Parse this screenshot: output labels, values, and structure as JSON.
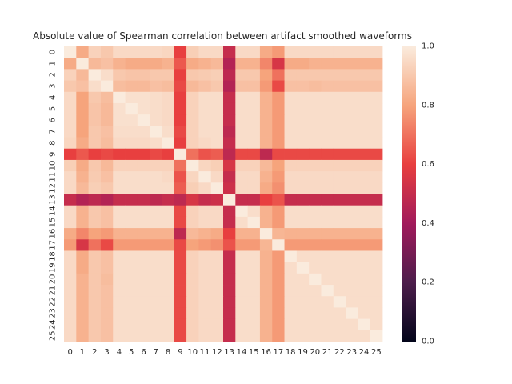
{
  "chart_data": {
    "type": "heatmap",
    "title": "Absolute value of Spearman correlation between artifact smoothed waveforms",
    "xlabel": "",
    "ylabel": "",
    "x_tick_labels": [
      "0",
      "1",
      "2",
      "3",
      "4",
      "5",
      "6",
      "7",
      "8",
      "9",
      "10",
      "11",
      "12",
      "13",
      "14",
      "15",
      "16",
      "17",
      "18",
      "19",
      "20",
      "21",
      "22",
      "23",
      "24",
      "25"
    ],
    "y_tick_labels": [
      "0",
      "1",
      "2",
      "3",
      "4",
      "5",
      "6",
      "7",
      "8",
      "9",
      "10",
      "11",
      "12",
      "13",
      "14",
      "15",
      "16",
      "17",
      "18",
      "19",
      "20",
      "21",
      "22",
      "23",
      "24",
      "25"
    ],
    "colorbar": {
      "range": [
        0.0,
        1.0
      ],
      "tick_labels": [
        "0.0",
        "0.2",
        "0.4",
        "0.6",
        "0.8",
        "1.0"
      ],
      "tick_values": [
        0.0,
        0.2,
        0.4,
        0.6,
        0.8,
        1.0
      ]
    },
    "colormap_stops": [
      [
        0.0,
        "#03051a"
      ],
      [
        0.2,
        "#4c1d4b"
      ],
      [
        0.4,
        "#a11a5b"
      ],
      [
        0.6,
        "#e83f3f"
      ],
      [
        0.8,
        "#f6a47c"
      ],
      [
        1.0,
        "#faebdd"
      ]
    ],
    "values": [
      [
        1.0,
        0.82,
        0.93,
        0.9,
        0.95,
        0.95,
        0.95,
        0.95,
        0.94,
        0.6,
        0.92,
        0.95,
        0.95,
        0.5,
        0.95,
        0.95,
        0.82,
        0.78,
        0.95,
        0.95,
        0.95,
        0.95,
        0.95,
        0.95,
        0.95,
        0.95
      ],
      [
        0.82,
        1.0,
        0.86,
        0.88,
        0.84,
        0.82,
        0.82,
        0.82,
        0.84,
        0.65,
        0.82,
        0.84,
        0.86,
        0.45,
        0.84,
        0.84,
        0.74,
        0.55,
        0.82,
        0.82,
        0.84,
        0.84,
        0.84,
        0.84,
        0.84,
        0.84
      ],
      [
        0.93,
        0.86,
        1.0,
        0.96,
        0.9,
        0.89,
        0.89,
        0.9,
        0.9,
        0.6,
        0.9,
        0.91,
        0.92,
        0.48,
        0.9,
        0.9,
        0.8,
        0.7,
        0.9,
        0.9,
        0.9,
        0.9,
        0.9,
        0.9,
        0.9,
        0.9
      ],
      [
        0.9,
        0.88,
        0.96,
        1.0,
        0.87,
        0.86,
        0.86,
        0.88,
        0.87,
        0.62,
        0.86,
        0.88,
        0.9,
        0.45,
        0.88,
        0.88,
        0.78,
        0.62,
        0.88,
        0.88,
        0.87,
        0.88,
        0.88,
        0.88,
        0.88,
        0.88
      ],
      [
        0.95,
        0.8,
        0.9,
        0.87,
        1.0,
        0.97,
        0.97,
        0.96,
        0.95,
        0.6,
        0.93,
        0.96,
        0.96,
        0.5,
        0.96,
        0.96,
        0.84,
        0.78,
        0.96,
        0.96,
        0.96,
        0.96,
        0.96,
        0.96,
        0.96,
        0.96
      ],
      [
        0.95,
        0.8,
        0.89,
        0.86,
        0.97,
        1.0,
        0.97,
        0.96,
        0.95,
        0.6,
        0.93,
        0.96,
        0.96,
        0.5,
        0.96,
        0.96,
        0.84,
        0.78,
        0.96,
        0.96,
        0.96,
        0.96,
        0.96,
        0.96,
        0.96,
        0.96
      ],
      [
        0.95,
        0.8,
        0.89,
        0.86,
        0.97,
        0.97,
        1.0,
        0.96,
        0.95,
        0.6,
        0.93,
        0.96,
        0.96,
        0.5,
        0.96,
        0.96,
        0.84,
        0.78,
        0.96,
        0.96,
        0.96,
        0.96,
        0.96,
        0.96,
        0.96,
        0.96
      ],
      [
        0.95,
        0.8,
        0.9,
        0.88,
        0.96,
        0.96,
        0.96,
        1.0,
        0.96,
        0.62,
        0.93,
        0.96,
        0.96,
        0.48,
        0.96,
        0.96,
        0.84,
        0.78,
        0.96,
        0.96,
        0.96,
        0.96,
        0.96,
        0.96,
        0.96,
        0.96
      ],
      [
        0.94,
        0.82,
        0.9,
        0.87,
        0.95,
        0.95,
        0.95,
        0.96,
        1.0,
        0.6,
        0.93,
        0.95,
        0.96,
        0.5,
        0.96,
        0.96,
        0.84,
        0.78,
        0.96,
        0.96,
        0.96,
        0.96,
        0.96,
        0.96,
        0.96,
        0.96
      ],
      [
        0.6,
        0.65,
        0.6,
        0.62,
        0.6,
        0.6,
        0.6,
        0.62,
        0.6,
        1.0,
        0.7,
        0.64,
        0.66,
        0.48,
        0.62,
        0.62,
        0.48,
        0.62,
        0.62,
        0.62,
        0.62,
        0.62,
        0.62,
        0.62,
        0.62,
        0.62
      ],
      [
        0.92,
        0.82,
        0.9,
        0.86,
        0.93,
        0.93,
        0.93,
        0.93,
        0.93,
        0.7,
        1.0,
        0.94,
        0.92,
        0.55,
        0.93,
        0.93,
        0.86,
        0.8,
        0.93,
        0.93,
        0.93,
        0.93,
        0.93,
        0.93,
        0.93,
        0.93
      ],
      [
        0.95,
        0.84,
        0.91,
        0.88,
        0.96,
        0.96,
        0.96,
        0.96,
        0.95,
        0.64,
        0.94,
        1.0,
        0.95,
        0.5,
        0.95,
        0.95,
        0.84,
        0.78,
        0.95,
        0.95,
        0.95,
        0.95,
        0.95,
        0.95,
        0.95,
        0.95
      ],
      [
        0.95,
        0.86,
        0.92,
        0.9,
        0.96,
        0.96,
        0.96,
        0.96,
        0.96,
        0.66,
        0.92,
        0.95,
        1.0,
        0.52,
        0.95,
        0.95,
        0.82,
        0.76,
        0.95,
        0.95,
        0.95,
        0.95,
        0.95,
        0.95,
        0.95,
        0.95
      ],
      [
        0.5,
        0.45,
        0.48,
        0.45,
        0.5,
        0.5,
        0.5,
        0.48,
        0.5,
        0.48,
        0.55,
        0.5,
        0.52,
        1.0,
        0.5,
        0.5,
        0.6,
        0.64,
        0.5,
        0.5,
        0.5,
        0.5,
        0.5,
        0.5,
        0.5,
        0.5
      ],
      [
        0.95,
        0.84,
        0.9,
        0.88,
        0.96,
        0.96,
        0.96,
        0.96,
        0.96,
        0.62,
        0.93,
        0.95,
        0.95,
        0.5,
        1.0,
        0.96,
        0.84,
        0.78,
        0.96,
        0.96,
        0.96,
        0.96,
        0.96,
        0.96,
        0.96,
        0.96
      ],
      [
        0.95,
        0.84,
        0.9,
        0.88,
        0.96,
        0.96,
        0.96,
        0.96,
        0.96,
        0.62,
        0.93,
        0.95,
        0.95,
        0.5,
        0.96,
        1.0,
        0.84,
        0.78,
        0.96,
        0.96,
        0.96,
        0.96,
        0.96,
        0.96,
        0.96,
        0.96
      ],
      [
        0.82,
        0.74,
        0.8,
        0.78,
        0.84,
        0.84,
        0.84,
        0.84,
        0.84,
        0.48,
        0.86,
        0.84,
        0.82,
        0.6,
        0.84,
        0.84,
        1.0,
        0.85,
        0.84,
        0.84,
        0.84,
        0.84,
        0.84,
        0.84,
        0.84,
        0.84
      ],
      [
        0.78,
        0.55,
        0.7,
        0.62,
        0.78,
        0.78,
        0.78,
        0.78,
        0.78,
        0.62,
        0.8,
        0.78,
        0.76,
        0.64,
        0.78,
        0.78,
        0.85,
        1.0,
        0.78,
        0.78,
        0.78,
        0.78,
        0.78,
        0.78,
        0.78,
        0.78
      ],
      [
        0.95,
        0.82,
        0.9,
        0.88,
        0.96,
        0.96,
        0.96,
        0.96,
        0.96,
        0.62,
        0.93,
        0.95,
        0.95,
        0.5,
        0.96,
        0.96,
        0.84,
        0.78,
        1.0,
        0.96,
        0.96,
        0.96,
        0.96,
        0.96,
        0.96,
        0.96
      ],
      [
        0.95,
        0.82,
        0.9,
        0.88,
        0.96,
        0.96,
        0.96,
        0.96,
        0.96,
        0.62,
        0.93,
        0.95,
        0.95,
        0.5,
        0.96,
        0.96,
        0.84,
        0.78,
        0.96,
        1.0,
        0.96,
        0.96,
        0.96,
        0.96,
        0.96,
        0.96
      ],
      [
        0.95,
        0.84,
        0.9,
        0.87,
        0.96,
        0.96,
        0.96,
        0.96,
        0.96,
        0.62,
        0.93,
        0.95,
        0.95,
        0.5,
        0.96,
        0.96,
        0.84,
        0.78,
        0.96,
        0.96,
        1.0,
        0.96,
        0.96,
        0.96,
        0.96,
        0.96
      ],
      [
        0.95,
        0.84,
        0.9,
        0.88,
        0.96,
        0.96,
        0.96,
        0.96,
        0.96,
        0.62,
        0.93,
        0.95,
        0.95,
        0.5,
        0.96,
        0.96,
        0.84,
        0.78,
        0.96,
        0.96,
        0.96,
        1.0,
        0.96,
        0.96,
        0.96,
        0.96
      ],
      [
        0.95,
        0.84,
        0.9,
        0.88,
        0.96,
        0.96,
        0.96,
        0.96,
        0.96,
        0.62,
        0.93,
        0.95,
        0.95,
        0.5,
        0.96,
        0.96,
        0.84,
        0.78,
        0.96,
        0.96,
        0.96,
        0.96,
        1.0,
        0.96,
        0.96,
        0.96
      ],
      [
        0.95,
        0.84,
        0.9,
        0.88,
        0.96,
        0.96,
        0.96,
        0.96,
        0.96,
        0.62,
        0.93,
        0.95,
        0.95,
        0.5,
        0.96,
        0.96,
        0.84,
        0.78,
        0.96,
        0.96,
        0.96,
        0.96,
        0.96,
        1.0,
        0.96,
        0.96
      ],
      [
        0.95,
        0.84,
        0.9,
        0.88,
        0.96,
        0.96,
        0.96,
        0.96,
        0.96,
        0.62,
        0.93,
        0.95,
        0.95,
        0.5,
        0.96,
        0.96,
        0.84,
        0.78,
        0.96,
        0.96,
        0.96,
        0.96,
        0.96,
        0.96,
        1.0,
        0.96
      ],
      [
        0.95,
        0.84,
        0.9,
        0.88,
        0.96,
        0.96,
        0.96,
        0.96,
        0.96,
        0.62,
        0.93,
        0.95,
        0.95,
        0.5,
        0.96,
        0.96,
        0.84,
        0.78,
        0.96,
        0.96,
        0.96,
        0.96,
        0.96,
        0.96,
        0.96,
        1.0
      ]
    ]
  }
}
